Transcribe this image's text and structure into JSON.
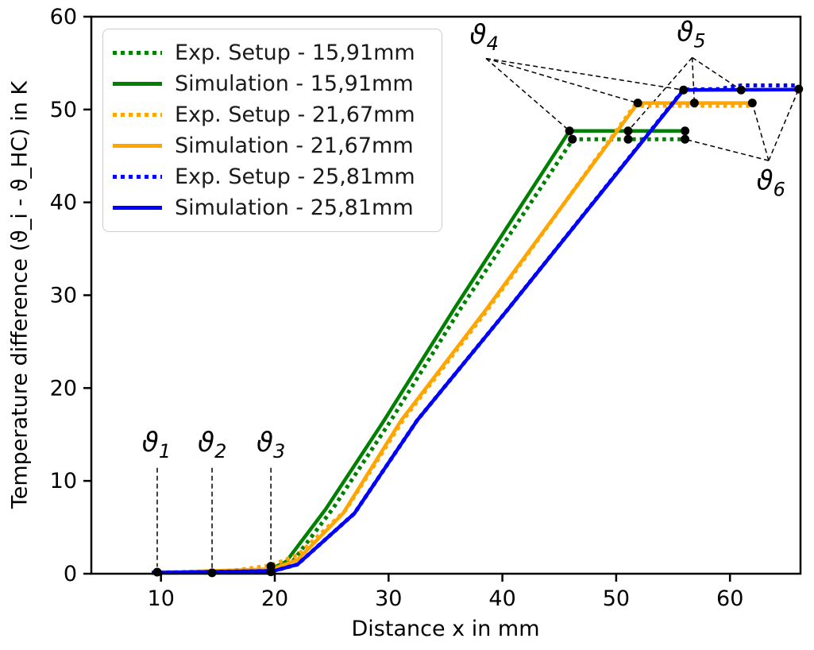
{
  "figure": {
    "background": "#ffffff"
  },
  "chart_data": {
    "type": "line",
    "title": "",
    "xlabel": "Distance x in mm",
    "ylabel": "Temperature difference (ϑ_i - ϑ_HC) in K",
    "xlim": [
      3.9,
      66.2
    ],
    "ylim": [
      0,
      60
    ],
    "xticks": [
      10,
      20,
      30,
      40,
      50,
      60
    ],
    "yticks": [
      0,
      10,
      20,
      30,
      40,
      50,
      60
    ],
    "grid": false,
    "legend_position": "upper left",
    "axis_color": "#000000",
    "marker_color": "#000000",
    "annotation_line_color": "#000000",
    "series": [
      {
        "name": "Exp. Setup - 15,91mm",
        "color": "#008000",
        "style": "dotted",
        "points": [
          [
            9.2,
            0.1
          ],
          [
            19.6,
            0.25
          ],
          [
            21.5,
            1.2
          ],
          [
            25.1,
            7.0
          ],
          [
            30.2,
            16.5
          ],
          [
            36.3,
            28.5
          ],
          [
            46.2,
            46.8
          ],
          [
            56.05,
            46.8
          ]
        ]
      },
      {
        "name": "Simulation - 15,91mm",
        "color": "#008000",
        "style": "solid",
        "points": [
          [
            9.2,
            0.15
          ],
          [
            19.3,
            0.3
          ],
          [
            21.0,
            1.3
          ],
          [
            24.5,
            7.0
          ],
          [
            29.6,
            16.5
          ],
          [
            35.75,
            28.5
          ],
          [
            45.9,
            47.7
          ],
          [
            56.05,
            47.7
          ]
        ]
      },
      {
        "name": "Exp. Setup - 21,67mm",
        "color": "#FFA500",
        "style": "dotted",
        "points": [
          [
            9.2,
            0.1
          ],
          [
            14.8,
            0.15
          ],
          [
            17.0,
            0.45
          ],
          [
            19.66,
            0.9
          ],
          [
            22.0,
            2.0
          ],
          [
            26.2,
            6.8
          ],
          [
            31.3,
            16.6
          ],
          [
            38.8,
            28.6
          ],
          [
            51.6,
            50.4
          ],
          [
            61.96,
            50.4
          ]
        ]
      },
      {
        "name": "Simulation - 21,67mm",
        "color": "#FFA500",
        "style": "solid",
        "points": [
          [
            9.2,
            0.1
          ],
          [
            19.8,
            0.5
          ],
          [
            22.0,
            1.5
          ],
          [
            26.0,
            6.5
          ],
          [
            31.1,
            16.5
          ],
          [
            38.6,
            28.5
          ],
          [
            51.9,
            50.7
          ],
          [
            61.96,
            50.7
          ]
        ]
      },
      {
        "name": "Exp. Setup - 25,81mm",
        "color": "#0000FF",
        "style": "dotted",
        "points": [
          [
            9.2,
            0.1
          ],
          [
            19.9,
            0.3
          ],
          [
            22.0,
            1.0
          ],
          [
            27.0,
            6.5
          ],
          [
            32.5,
            16.5
          ],
          [
            40.5,
            28.5
          ],
          [
            55.92,
            52.15
          ],
          [
            59.0,
            52.2
          ],
          [
            61.0,
            52.6
          ],
          [
            66.04,
            52.6
          ]
        ]
      },
      {
        "name": "Simulation - 25,81mm",
        "color": "#0000FF",
        "style": "solid",
        "points": [
          [
            9.2,
            0.1
          ],
          [
            19.9,
            0.3
          ],
          [
            22.0,
            1.0
          ],
          [
            27.0,
            6.5
          ],
          [
            32.5,
            16.5
          ],
          [
            40.5,
            28.5
          ],
          [
            55.92,
            52.1
          ],
          [
            66.04,
            52.15
          ]
        ]
      }
    ],
    "markers": [
      [
        9.67,
        0.17
      ],
      [
        14.49,
        0.1
      ],
      [
        19.66,
        0.8
      ],
      [
        19.66,
        0.2
      ],
      [
        45.9,
        47.7
      ],
      [
        51.05,
        47.7
      ],
      [
        56.05,
        47.7
      ],
      [
        46.15,
        46.8
      ],
      [
        51.05,
        46.8
      ],
      [
        56.05,
        46.8
      ],
      [
        51.9,
        50.7
      ],
      [
        56.87,
        50.7
      ],
      [
        61.96,
        50.7
      ],
      [
        55.92,
        52.1
      ],
      [
        60.98,
        52.1
      ],
      [
        66.04,
        52.2
      ]
    ],
    "annotations": [
      {
        "symbol": "ϑ",
        "sub": "1",
        "label_at": [
          9.6,
          13.2
        ],
        "vertex": [
          9.67,
          11.4
        ],
        "targets": [
          [
            9.67,
            0.75
          ]
        ]
      },
      {
        "symbol": "ϑ",
        "sub": "2",
        "label_at": [
          14.5,
          13.2
        ],
        "vertex": [
          14.49,
          11.4
        ],
        "targets": [
          [
            14.49,
            0.6
          ]
        ]
      },
      {
        "symbol": "ϑ",
        "sub": "3",
        "label_at": [
          19.66,
          13.2
        ],
        "vertex": [
          19.66,
          11.4
        ],
        "targets": [
          [
            19.66,
            1.5
          ]
        ]
      },
      {
        "symbol": "ϑ",
        "sub": "4",
        "label_at": [
          38.4,
          57.1
        ],
        "vertex": [
          38.56,
          55.5
        ],
        "targets": [
          [
            45.9,
            47.7
          ],
          [
            51.9,
            50.7
          ],
          [
            55.92,
            52.1
          ]
        ]
      },
      {
        "symbol": "ϑ",
        "sub": "5",
        "label_at": [
          56.6,
          57.4
        ],
        "vertex": [
          56.68,
          55.6
        ],
        "targets": [
          [
            51.05,
            47.7
          ],
          [
            56.87,
            50.7
          ],
          [
            60.98,
            52.1
          ]
        ]
      },
      {
        "symbol": "ϑ",
        "sub": "6",
        "label_at": [
          63.6,
          41.4
        ],
        "vertex": [
          63.4,
          44.5
        ],
        "targets": [
          [
            56.05,
            46.8
          ],
          [
            61.96,
            50.7
          ],
          [
            66.04,
            52.2
          ]
        ]
      }
    ]
  }
}
